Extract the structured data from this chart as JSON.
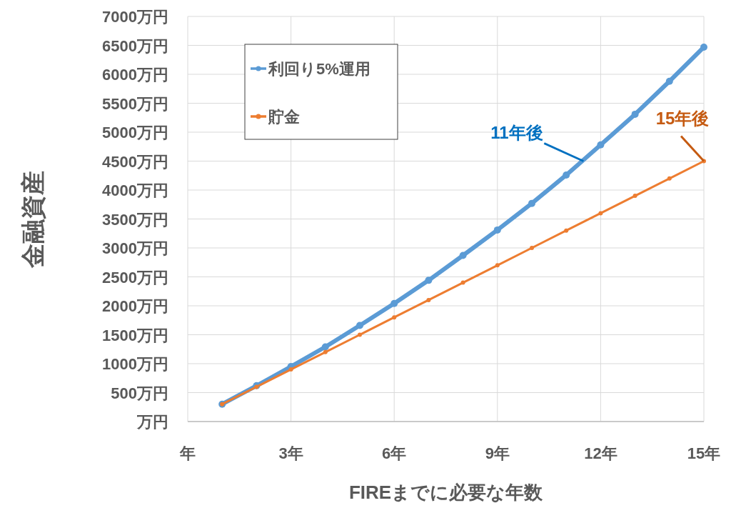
{
  "chart_data": {
    "type": "line",
    "xlabel": "FIREまでに必要な年数",
    "ylabel": "金融資産",
    "x": [
      1,
      2,
      3,
      4,
      5,
      6,
      7,
      8,
      9,
      10,
      11,
      12,
      13,
      14,
      15
    ],
    "series": [
      {
        "name": "利回り5%運用",
        "color": "#5b9bd5",
        "values": [
          300,
          620,
          950,
          1290,
          1660,
          2040,
          2440,
          2870,
          3310,
          3770,
          4260,
          4780,
          5310,
          5880,
          6470
        ]
      },
      {
        "name": "貯金",
        "color": "#ed7d31",
        "values": [
          300,
          600,
          900,
          1200,
          1500,
          1800,
          2100,
          2400,
          2700,
          3000,
          3300,
          3600,
          3900,
          4200,
          4500
        ]
      }
    ],
    "xlim": [
      0,
      15
    ],
    "xticks": [
      {
        "value": 0,
        "label": "年"
      },
      {
        "value": 3,
        "label": "3年"
      },
      {
        "value": 6,
        "label": "6年"
      },
      {
        "value": 9,
        "label": "9年"
      },
      {
        "value": 12,
        "label": "12年"
      },
      {
        "value": 15,
        "label": "15年"
      }
    ],
    "ylim": [
      0,
      7000
    ],
    "yticks": [
      {
        "value": 0,
        "label": "万円"
      },
      {
        "value": 500,
        "label": "500万円"
      },
      {
        "value": 1000,
        "label": "1000万円"
      },
      {
        "value": 1500,
        "label": "1500万円"
      },
      {
        "value": 2000,
        "label": "2000万円"
      },
      {
        "value": 2500,
        "label": "2500万円"
      },
      {
        "value": 3000,
        "label": "3000万円"
      },
      {
        "value": 3500,
        "label": "3500万円"
      },
      {
        "value": 4000,
        "label": "4000万円"
      },
      {
        "value": 4500,
        "label": "4500万円"
      },
      {
        "value": 5000,
        "label": "5000万円"
      },
      {
        "value": 5500,
        "label": "5500万円"
      },
      {
        "value": 6000,
        "label": "6000万円"
      },
      {
        "value": 6500,
        "label": "6500万円"
      },
      {
        "value": 7000,
        "label": "7000万円"
      }
    ],
    "annotations": [
      {
        "text": "11年後",
        "x": 11.5,
        "y": 4500
      },
      {
        "text": "15年後",
        "x": 15,
        "y": 4500
      }
    ],
    "grid": true,
    "legend": "top left",
    "marker": "circle",
    "line_style": "solid"
  }
}
